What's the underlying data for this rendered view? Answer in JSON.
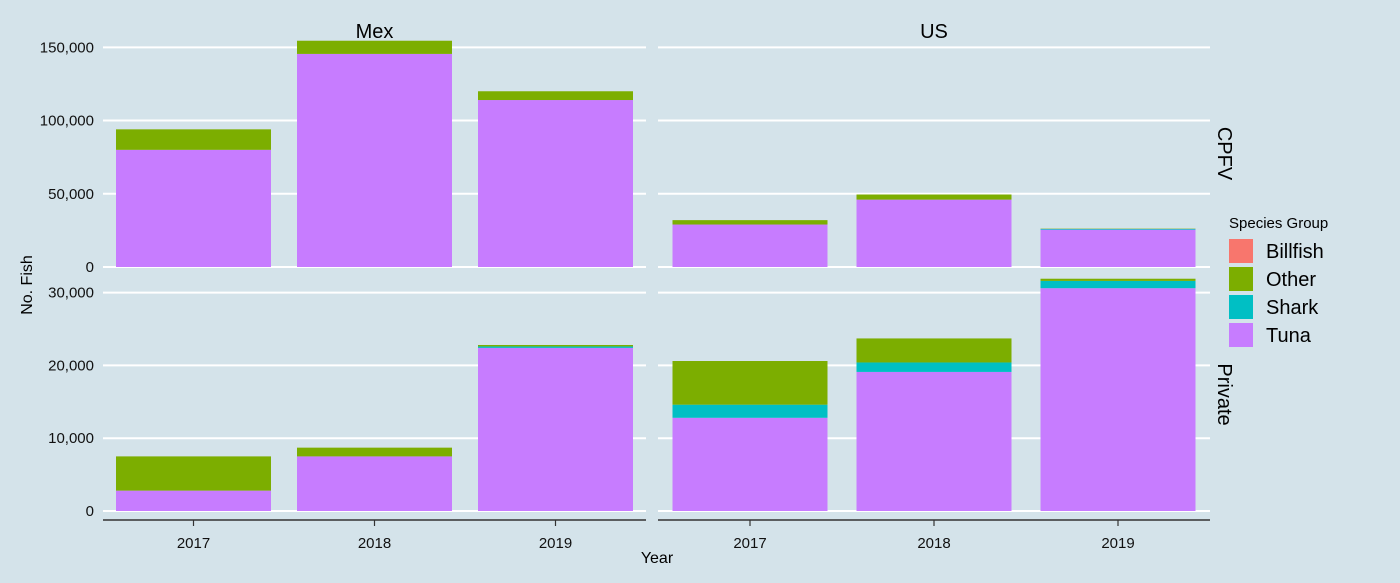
{
  "chart_data": {
    "type": "bar",
    "stacked": true,
    "facet_columns": [
      "Mex",
      "US"
    ],
    "facet_rows": [
      "CPFV",
      "Private"
    ],
    "categories": [
      "2017",
      "2018",
      "2019"
    ],
    "xlabel": "Year",
    "ylabel": "No. Fish",
    "legend_title": "Species Group",
    "legend_position": "right",
    "series_names": [
      "Billfish",
      "Other",
      "Shark",
      "Tuna"
    ],
    "colors": {
      "Billfish": "#f8766d",
      "Other": "#7cae00",
      "Shark": "#00bfc4",
      "Tuna": "#c77cff"
    },
    "stack_order": [
      "Tuna",
      "Shark",
      "Billfish",
      "Other"
    ],
    "rows": [
      {
        "name": "CPFV",
        "ylim": [
          0,
          155000
        ],
        "ticks": [
          0,
          50000,
          100000,
          150000
        ],
        "tick_labels": [
          "0",
          "50,000",
          "100,000",
          "150,000"
        ]
      },
      {
        "name": "Private",
        "ylim": [
          0,
          32000
        ],
        "ticks": [
          0,
          10000,
          20000,
          30000
        ],
        "tick_labels": [
          "0",
          "10,000",
          "20,000",
          "30,000"
        ]
      }
    ],
    "panels": [
      {
        "row": "CPFV",
        "col": "Mex",
        "values": {
          "Tuna": [
            80000,
            145500,
            114000
          ],
          "Shark": [
            0,
            0,
            0
          ],
          "Billfish": [
            0,
            0,
            0
          ],
          "Other": [
            14000,
            9000,
            6000
          ]
        }
      },
      {
        "row": "CPFV",
        "col": "US",
        "values": {
          "Tuna": [
            29000,
            46000,
            25500
          ],
          "Shark": [
            0,
            0,
            500
          ],
          "Billfish": [
            0,
            0,
            0
          ],
          "Other": [
            3000,
            3500,
            200
          ]
        }
      },
      {
        "row": "Private",
        "col": "Mex",
        "values": {
          "Tuna": [
            2800,
            7500,
            22400
          ],
          "Shark": [
            0,
            0,
            200
          ],
          "Billfish": [
            0,
            0,
            0
          ],
          "Other": [
            4700,
            1200,
            200
          ]
        }
      },
      {
        "row": "Private",
        "col": "US",
        "values": {
          "Tuna": [
            12800,
            19100,
            30600
          ],
          "Shark": [
            1800,
            1300,
            1000
          ],
          "Billfish": [
            0,
            0,
            0
          ],
          "Other": [
            6000,
            3300,
            300
          ]
        }
      }
    ]
  }
}
